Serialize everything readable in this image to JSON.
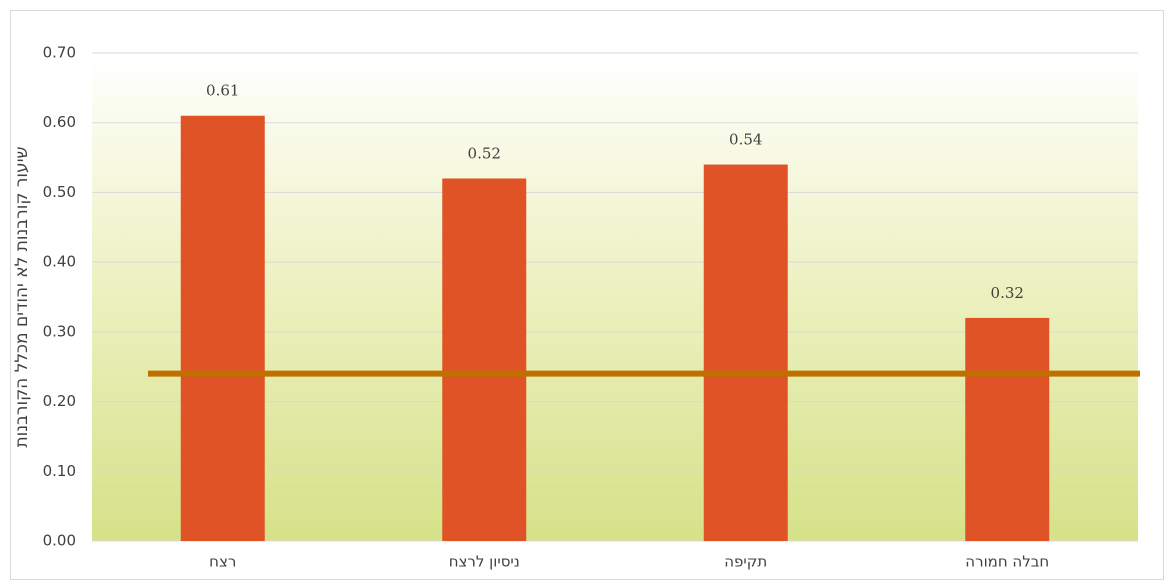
{
  "chart_data": {
    "type": "bar",
    "y_label": "שיעור קורבנות לא יהודים מכלל הקורבנות",
    "categories": [
      "רצח",
      "ניסיון לרצח",
      "תקיפה",
      "חבלה חמורה"
    ],
    "values": [
      0.61,
      0.52,
      0.54,
      0.32
    ],
    "color": "#e05326",
    "reference_value": 0.24,
    "reference_color": "#bf7000",
    "ylim": [
      0,
      0.7
    ],
    "yticks": [
      {
        "value": 0,
        "label": "0.00"
      },
      {
        "value": 0.1,
        "label": "0.10"
      },
      {
        "value": 0.2,
        "label": "0.20"
      },
      {
        "value": 0.3,
        "label": "0.30"
      },
      {
        "value": 0.4,
        "label": "0.40"
      },
      {
        "value": 0.5,
        "label": "0.50"
      },
      {
        "value": 0.6,
        "label": "0.60"
      },
      {
        "value": 0.7,
        "label": "0.70"
      }
    ],
    "grid": true
  }
}
